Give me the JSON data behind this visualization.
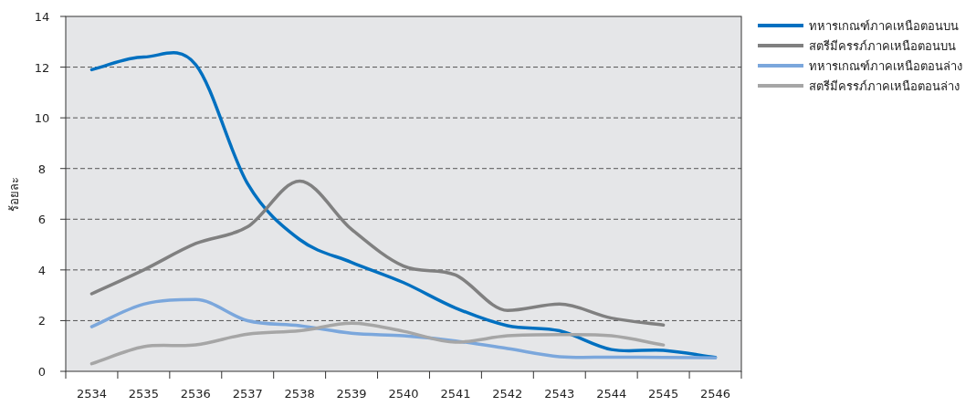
{
  "chart_data": {
    "type": "line",
    "ylabel": "ร้อยละ",
    "categories": [
      "2534",
      "2535",
      "2536",
      "2537",
      "2538",
      "2539",
      "2540",
      "2541",
      "2542",
      "2543",
      "2544",
      "2545",
      "2546"
    ],
    "series": [
      {
        "name": "ทหารเกณฑ์ภาคเหนือตอนบน",
        "color": "#0070c0",
        "values": [
          11.9,
          12.4,
          12.1,
          7.4,
          5.2,
          4.3,
          3.5,
          2.5,
          1.8,
          1.6,
          0.86,
          0.83,
          0.55
        ]
      },
      {
        "name": "สตรีมีครรภ์ภาคเหนือตอนบน",
        "color": "#808080",
        "values": [
          3.06,
          4.0,
          5.04,
          5.7,
          7.5,
          5.6,
          4.15,
          3.8,
          2.4,
          2.65,
          2.1,
          1.83,
          null
        ]
      },
      {
        "name": "ทหารเกณฑ์ภาคเหนือตอนล่าง",
        "color": "#7ba7dc",
        "values": [
          1.76,
          2.65,
          2.83,
          2.0,
          1.8,
          1.5,
          1.4,
          1.2,
          0.9,
          0.58,
          0.56,
          0.55,
          0.53
        ]
      },
      {
        "name": "สตรีมีครรภ์ภาคเหนือตอนล่าง",
        "color": "#a6a6a6",
        "values": [
          0.3,
          0.97,
          1.04,
          1.47,
          1.6,
          1.9,
          1.58,
          1.15,
          1.4,
          1.45,
          1.4,
          1.04,
          null
        ]
      }
    ],
    "ylim": [
      0,
      14
    ],
    "yticks": [
      0,
      2,
      4,
      6,
      8,
      10,
      12,
      14
    ],
    "grid": "y",
    "legend": "right",
    "line_style": "solid"
  }
}
